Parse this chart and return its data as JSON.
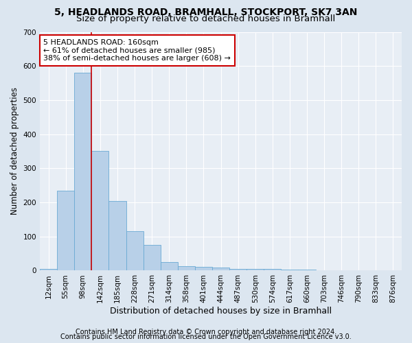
{
  "title1": "5, HEADLANDS ROAD, BRAMHALL, STOCKPORT, SK7 3AN",
  "title2": "Size of property relative to detached houses in Bramhall",
  "xlabel": "Distribution of detached houses by size in Bramhall",
  "ylabel": "Number of detached properties",
  "categories": [
    "12sqm",
    "55sqm",
    "98sqm",
    "142sqm",
    "185sqm",
    "228sqm",
    "271sqm",
    "314sqm",
    "358sqm",
    "401sqm",
    "444sqm",
    "487sqm",
    "530sqm",
    "574sqm",
    "617sqm",
    "660sqm",
    "703sqm",
    "746sqm",
    "790sqm",
    "833sqm",
    "876sqm"
  ],
  "values": [
    5,
    235,
    580,
    350,
    205,
    115,
    75,
    25,
    12,
    10,
    8,
    5,
    5,
    4,
    3,
    3,
    0,
    0,
    0,
    0,
    0
  ],
  "bar_color": "#b8d0e8",
  "bar_edge_color": "#6aaad4",
  "red_line_x": 2.5,
  "annotation_line1": "5 HEADLANDS ROAD: 160sqm",
  "annotation_line2": "← 61% of detached houses are smaller (985)",
  "annotation_line3": "38% of semi-detached houses are larger (608) →",
  "annotation_box_color": "#ffffff",
  "annotation_box_edge_color": "#cc0000",
  "ylim": [
    0,
    700
  ],
  "yticks": [
    0,
    100,
    200,
    300,
    400,
    500,
    600,
    700
  ],
  "footer1": "Contains HM Land Registry data © Crown copyright and database right 2024.",
  "footer2": "Contains public sector information licensed under the Open Government Licence v3.0.",
  "bg_color": "#dce6f0",
  "plot_bg_color": "#e8eef5",
  "title1_fontsize": 10,
  "title2_fontsize": 9.5,
  "xlabel_fontsize": 9,
  "ylabel_fontsize": 8.5,
  "tick_fontsize": 7.5,
  "footer_fontsize": 7,
  "annotation_fontsize": 8,
  "grid_color": "#ffffff",
  "red_line_color": "#cc0000"
}
